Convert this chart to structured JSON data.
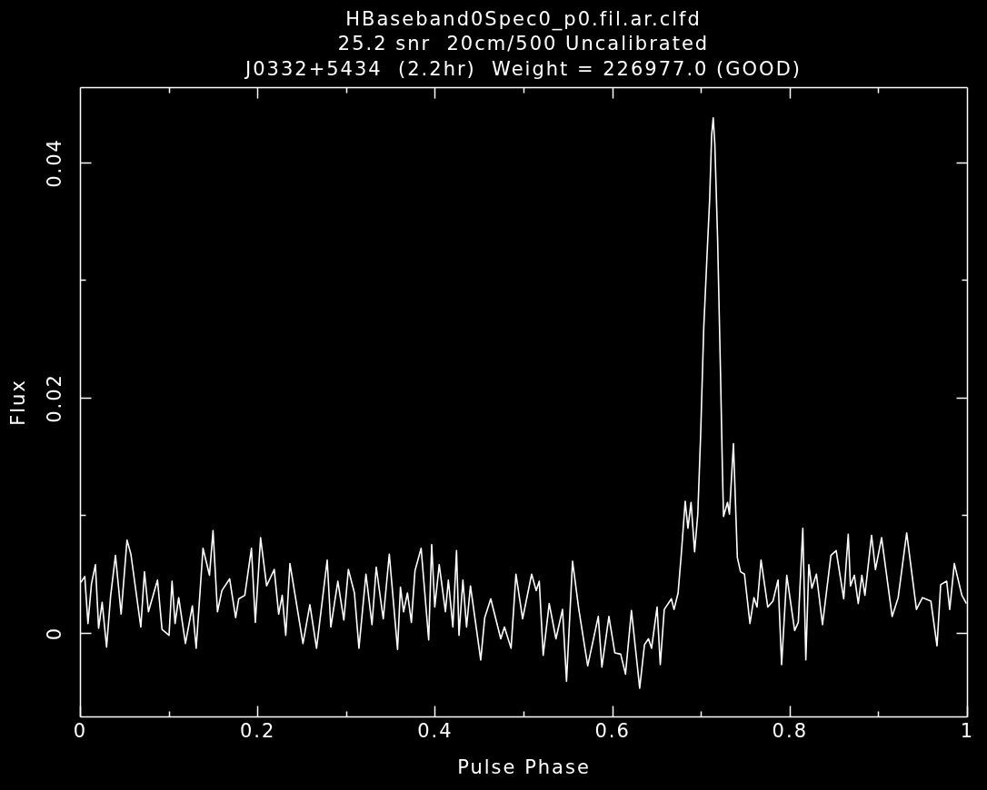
{
  "chart_data": {
    "type": "line",
    "title": "HBaseband0Spec0_p0.fil.ar.clfd",
    "subtitle": "25.2 snr  20cm/500 Uncalibrated\nJ0332+5434  (2.2hr)  Weight = 226977.0 (GOOD)",
    "xlabel": "Pulse Phase",
    "ylabel": "Flux",
    "color": "#ffffff",
    "xlim": [
      0,
      1
    ],
    "ylim": [
      -0.0071,
      0.0464
    ],
    "xticks": [
      0,
      {
        "value": 0.1,
        "label": null
      },
      0.2,
      {
        "value": 0.3,
        "label": null
      },
      0.4,
      {
        "value": 0.5,
        "label": null
      },
      0.6,
      {
        "value": 0.7,
        "label": null
      },
      0.8,
      {
        "value": 0.9,
        "label": null
      },
      1
    ],
    "yticks": [
      0,
      {
        "value": 0.01,
        "label": null
      },
      0.02,
      {
        "value": 0.03,
        "label": null
      },
      0.04
    ],
    "x": [
      0.001,
      0.0054,
      0.009,
      0.013,
      0.0174,
      0.021,
      0.025,
      0.03,
      0.0345,
      0.04,
      0.0464,
      0.053,
      0.0574,
      0.0686,
      0.0727,
      0.0772,
      0.0874,
      0.0925,
      0.1004,
      0.1038,
      0.1072,
      0.1113,
      0.1189,
      0.1267,
      0.131,
      0.1387,
      0.146,
      0.15,
      0.155,
      0.16,
      0.1687,
      0.1755,
      0.179,
      0.1858,
      0.1933,
      0.1977,
      0.2036,
      0.2104,
      0.219,
      0.224,
      0.228,
      0.232,
      0.2367,
      0.2514,
      0.2592,
      0.2667,
      0.2787,
      0.2828,
      0.2907,
      0.2975,
      0.3026,
      0.3094,
      0.3145,
      0.3224,
      0.3292,
      0.334,
      0.3419,
      0.3487,
      0.358,
      0.3613,
      0.3648,
      0.3692,
      0.3736,
      0.3777,
      0.3846,
      0.3931,
      0.3965,
      0.4,
      0.405,
      0.412,
      0.4153,
      0.4204,
      0.4245,
      0.4273,
      0.4317,
      0.4358,
      0.4402,
      0.4518,
      0.4563,
      0.4631,
      0.4744,
      0.4785,
      0.486,
      0.4915,
      0.499,
      0.5092,
      0.5143,
      0.5178,
      0.5222,
      0.529,
      0.5366,
      0.544,
      0.5485,
      0.5553,
      0.5622,
      0.5724,
      0.5843,
      0.5884,
      0.5963,
      0.603,
      0.6096,
      0.615,
      0.6217,
      0.631,
      0.6364,
      0.6409,
      0.6444,
      0.6506,
      0.6542,
      0.6587,
      0.6667,
      0.6697,
      0.6743,
      0.6779,
      0.6823,
      0.6854,
      0.6889,
      0.6929,
      0.6965,
      0.6997,
      0.7032,
      0.7068,
      0.7099,
      0.7121,
      0.7139,
      0.7157,
      0.7188,
      0.722,
      0.7242,
      0.7255,
      0.73,
      0.7322,
      0.7367,
      0.7411,
      0.7447,
      0.7491,
      0.7553,
      0.7598,
      0.7633,
      0.7678,
      0.7754,
      0.7812,
      0.787,
      0.791,
      0.7968,
      0.8057,
      0.8098,
      0.8149,
      0.8183,
      0.8217,
      0.8251,
      0.8302,
      0.8371,
      0.8466,
      0.8525,
      0.861,
      0.8661,
      0.8686,
      0.873,
      0.8774,
      0.8815,
      0.8849,
      0.8924,
      0.8968,
      0.9037,
      0.9156,
      0.9224,
      0.932,
      0.943,
      0.9498,
      0.9593,
      0.9662,
      0.9703,
      0.9771,
      0.9805,
      0.9857,
      0.9942,
      0.9993
    ],
    "values": [
      0.0043,
      0.0048,
      0.0008,
      0.0042,
      0.0058,
      0.0004,
      0.0026,
      -0.0012,
      0.0031,
      0.0066,
      0.0016,
      0.0079,
      0.0067,
      0.0005,
      0.0052,
      0.0018,
      0.0045,
      0.0003,
      -0.0002,
      0.0044,
      0.0008,
      0.003,
      -0.0009,
      0.0023,
      -0.0013,
      0.0072,
      0.0049,
      0.0087,
      0.0018,
      0.0036,
      0.0046,
      0.0013,
      0.0029,
      0.0032,
      0.0072,
      0.0009,
      0.0081,
      0.004,
      0.0054,
      0.0016,
      0.0032,
      -0.0002,
      0.0059,
      -0.0009,
      0.0024,
      -0.0013,
      0.0062,
      0.0005,
      0.0044,
      0.0011,
      0.0054,
      0.0034,
      -0.0013,
      0.005,
      0.0007,
      0.0056,
      0.0012,
      0.0067,
      -0.0014,
      0.0039,
      0.0018,
      0.0034,
      0.0009,
      0.0053,
      0.0072,
      -0.0006,
      0.0075,
      0.0022,
      0.0058,
      0.0018,
      0.0045,
      0.0005,
      0.007,
      -0.0002,
      0.0045,
      0.0005,
      0.004,
      -0.0023,
      0.0013,
      0.0029,
      -0.0005,
      0.0005,
      -0.0013,
      0.005,
      0.0012,
      0.005,
      0.0036,
      0.0044,
      -0.0019,
      0.0025,
      -0.0005,
      0.002,
      -0.0041,
      0.0061,
      0.0021,
      -0.0028,
      0.0014,
      -0.0029,
      0.0014,
      -0.0017,
      -0.0018,
      -0.0035,
      0.0019,
      -0.0047,
      -0.001,
      -0.0005,
      -0.0013,
      0.0022,
      -0.0027,
      0.002,
      0.0029,
      0.002,
      0.0034,
      0.0067,
      0.0112,
      0.0089,
      0.0111,
      0.0069,
      0.0101,
      0.0168,
      0.0259,
      0.0319,
      0.0369,
      0.0423,
      0.0438,
      0.0416,
      0.0336,
      0.0225,
      0.0141,
      0.0099,
      0.0111,
      0.0101,
      0.0161,
      0.0064,
      0.0052,
      0.005,
      0.0008,
      0.003,
      0.0022,
      0.0062,
      0.0022,
      0.0027,
      0.0045,
      -0.0027,
      0.0049,
      0.0002,
      0.0009,
      0.0089,
      -0.0023,
      0.0058,
      0.0038,
      0.005,
      0.0007,
      0.0066,
      0.007,
      0.0029,
      0.0084,
      0.004,
      0.0049,
      0.0025,
      0.0049,
      0.0032,
      0.0083,
      0.0054,
      0.0081,
      0.0014,
      0.003,
      0.0085,
      0.002,
      0.003,
      0.0027,
      -0.0011,
      0.0041,
      0.0044,
      0.002,
      0.0059,
      0.0032,
      0.0025
    ]
  }
}
